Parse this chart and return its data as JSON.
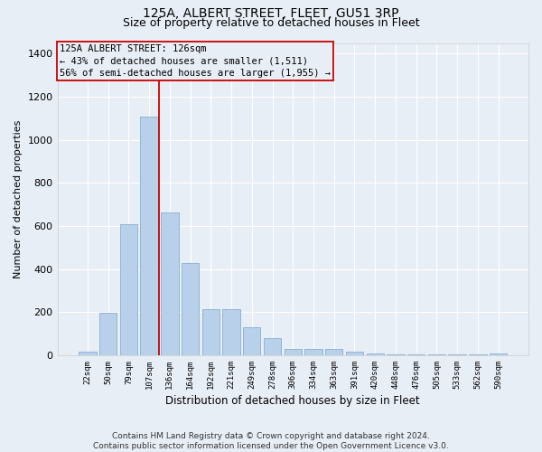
{
  "title1": "125A, ALBERT STREET, FLEET, GU51 3RP",
  "title2": "Size of property relative to detached houses in Fleet",
  "xlabel": "Distribution of detached houses by size in Fleet",
  "ylabel": "Number of detached properties",
  "categories": [
    "22sqm",
    "50sqm",
    "79sqm",
    "107sqm",
    "136sqm",
    "164sqm",
    "192sqm",
    "221sqm",
    "249sqm",
    "278sqm",
    "306sqm",
    "334sqm",
    "363sqm",
    "391sqm",
    "420sqm",
    "448sqm",
    "476sqm",
    "505sqm",
    "533sqm",
    "562sqm",
    "590sqm"
  ],
  "values": [
    15,
    195,
    610,
    1110,
    665,
    430,
    215,
    215,
    130,
    80,
    30,
    28,
    28,
    15,
    10,
    5,
    5,
    5,
    5,
    5,
    10
  ],
  "bar_color": "#b8d0ea",
  "bar_edge_color": "#88afd0",
  "bg_color": "#e8eef6",
  "grid_color": "#ffffff",
  "annotation_text": "125A ALBERT STREET: 126sqm\n← 43% of detached houses are smaller (1,511)\n56% of semi-detached houses are larger (1,955) →",
  "vline_x_index": 3,
  "vline_color": "#cc0000",
  "box_color": "#cc0000",
  "ylim": [
    0,
    1450
  ],
  "yticks": [
    0,
    200,
    400,
    600,
    800,
    1000,
    1200,
    1400
  ],
  "footnote": "Contains HM Land Registry data © Crown copyright and database right 2024.\nContains public sector information licensed under the Open Government Licence v3.0.",
  "title1_fontsize": 10,
  "title2_fontsize": 9,
  "annot_fontsize": 7.5,
  "footnote_fontsize": 6.5,
  "xlabel_fontsize": 8.5,
  "ylabel_fontsize": 8
}
